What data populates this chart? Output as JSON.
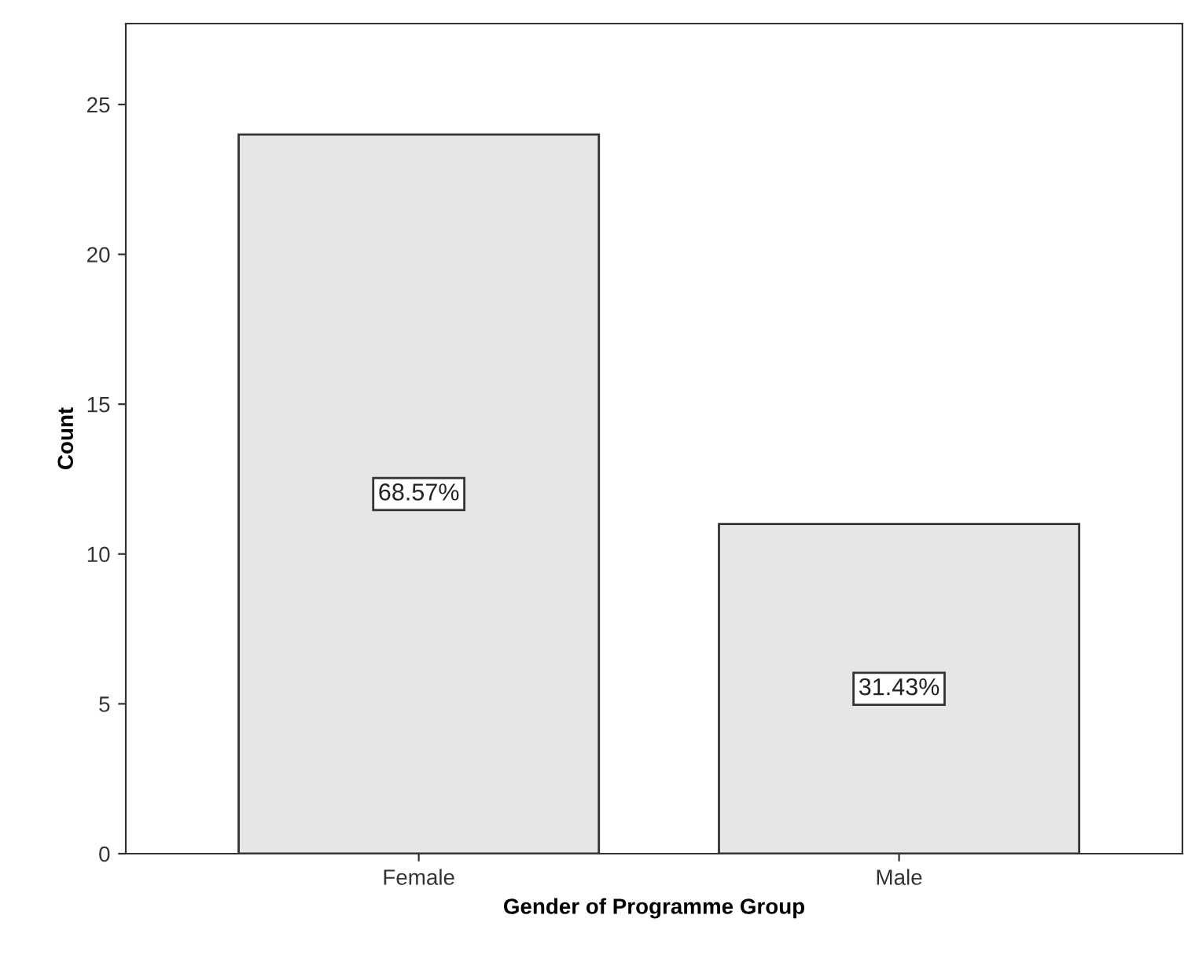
{
  "chart_data": {
    "type": "bar",
    "xlabel": "Gender of Programme Group",
    "ylabel": "Count",
    "categories": [
      "Female",
      "Male"
    ],
    "values": [
      24,
      11
    ],
    "annotations": [
      "68.57%",
      "31.43%"
    ],
    "color": "#e6e6e6",
    "ylim": [
      0,
      27.7
    ],
    "yticks": [
      0,
      5,
      10,
      15,
      20,
      25
    ],
    "grid": false
  }
}
